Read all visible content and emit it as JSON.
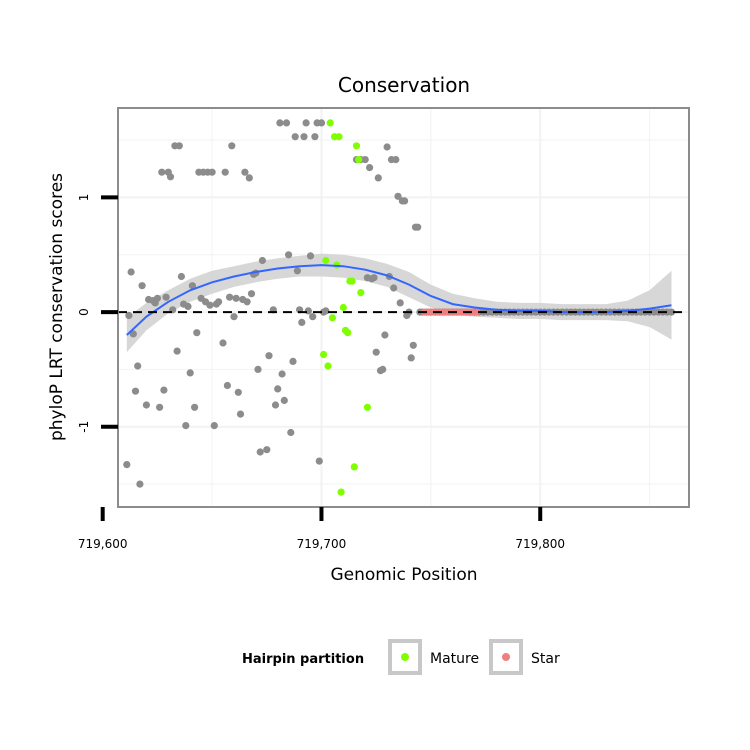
{
  "chart_data": {
    "type": "scatter",
    "title": "Conservation",
    "xlabel": "Genomic Position",
    "ylabel": "phyloP LRT conservation scores",
    "xlim": [
      719607,
      719868
    ],
    "ylim": [
      -1.7,
      1.78
    ],
    "x_ticks": [
      719600,
      719700,
      719800
    ],
    "x_tick_labels": [
      "719,600",
      "719,700",
      "719,800"
    ],
    "y_ticks": [
      -1,
      0,
      1
    ],
    "y_tick_labels": [
      "-1",
      "0",
      "1"
    ],
    "grid": true,
    "legend": {
      "title": "Hairpin partition",
      "position": "bottom",
      "entries": [
        {
          "label": "Mature",
          "color": "#7fff00"
        },
        {
          "label": "Star",
          "color": "#f08080"
        }
      ]
    },
    "colors": {
      "other": "#8c8c8c",
      "Mature": "#7fff00",
      "Star": "#f08080",
      "smooth": "#3366ff",
      "band": "#d3d3d3",
      "panel_border": "#8c8c8c",
      "gridline": "#f2f2f2"
    },
    "reference_line": {
      "y": 0,
      "style": "dashed"
    },
    "series": [
      {
        "name": "Other",
        "points": [
          [
            719611,
            -1.33
          ],
          [
            719612,
            -0.03
          ],
          [
            719613,
            0.35
          ],
          [
            719614,
            -0.19
          ],
          [
            719615,
            -0.69
          ],
          [
            719616,
            -0.47
          ],
          [
            719617,
            -1.5
          ],
          [
            719618,
            0.23
          ],
          [
            719620,
            -0.81
          ],
          [
            719621,
            0.11
          ],
          [
            719623,
            0.1
          ],
          [
            719624,
            0.08
          ],
          [
            719625,
            0.12
          ],
          [
            719626,
            -0.83
          ],
          [
            719627,
            1.22
          ],
          [
            719628,
            -0.68
          ],
          [
            719629,
            0.13
          ],
          [
            719630,
            1.22
          ],
          [
            719631,
            1.18
          ],
          [
            719632,
            0.02
          ],
          [
            719633,
            1.45
          ],
          [
            719634,
            -0.34
          ],
          [
            719635,
            1.45
          ],
          [
            719636,
            0.31
          ],
          [
            719637,
            0.07
          ],
          [
            719638,
            -0.99
          ],
          [
            719639,
            0.05
          ],
          [
            719640,
            -0.53
          ],
          [
            719641,
            0.23
          ],
          [
            719642,
            -0.83
          ],
          [
            719643,
            -0.18
          ],
          [
            719644,
            1.22
          ],
          [
            719645,
            0.12
          ],
          [
            719646,
            1.22
          ],
          [
            719647,
            0.09
          ],
          [
            719648,
            1.22
          ],
          [
            719649,
            0.06
          ],
          [
            719650,
            1.22
          ],
          [
            719651,
            -0.99
          ],
          [
            719652,
            0.07
          ],
          [
            719653,
            0.09
          ],
          [
            719655,
            -0.27
          ],
          [
            719656,
            1.22
          ],
          [
            719657,
            -0.64
          ],
          [
            719658,
            0.13
          ],
          [
            719659,
            1.45
          ],
          [
            719660,
            -0.04
          ],
          [
            719661,
            0.12
          ],
          [
            719662,
            -0.7
          ],
          [
            719663,
            -0.89
          ],
          [
            719664,
            0.11
          ],
          [
            719665,
            1.22
          ],
          [
            719666,
            0.09
          ],
          [
            719667,
            1.17
          ],
          [
            719668,
            0.16
          ],
          [
            719669,
            0.33
          ],
          [
            719670,
            0.34
          ],
          [
            719671,
            -0.5
          ],
          [
            719672,
            -1.22
          ],
          [
            719673,
            0.45
          ],
          [
            719675,
            -1.2
          ],
          [
            719676,
            -0.38
          ],
          [
            719678,
            0.02
          ],
          [
            719679,
            -0.81
          ],
          [
            719680,
            -0.67
          ],
          [
            719681,
            1.65
          ],
          [
            719682,
            -0.54
          ],
          [
            719683,
            -0.77
          ],
          [
            719684,
            1.65
          ],
          [
            719685,
            0.5
          ],
          [
            719686,
            -1.05
          ],
          [
            719687,
            -0.43
          ],
          [
            719688,
            1.53
          ],
          [
            719689,
            0.36
          ],
          [
            719690,
            0.02
          ],
          [
            719691,
            -0.09
          ],
          [
            719692,
            1.53
          ],
          [
            719693,
            1.65
          ],
          [
            719694,
            0.01
          ],
          [
            719695,
            0.49
          ],
          [
            719696,
            -0.04
          ],
          [
            719697,
            1.53
          ],
          [
            719698,
            1.65
          ],
          [
            719699,
            -1.3
          ],
          [
            719700,
            1.65
          ],
          [
            719701,
            0.0
          ],
          [
            719702,
            0.01
          ],
          [
            719716,
            1.33
          ],
          [
            719718,
            1.33
          ],
          [
            719720,
            1.33
          ],
          [
            719721,
            0.3
          ],
          [
            719722,
            1.26
          ],
          [
            719723,
            0.29
          ],
          [
            719724,
            0.3
          ],
          [
            719725,
            -0.35
          ],
          [
            719726,
            1.17
          ],
          [
            719727,
            -0.51
          ],
          [
            719728,
            -0.5
          ],
          [
            719729,
            -0.2
          ],
          [
            719730,
            1.44
          ],
          [
            719731,
            0.31
          ],
          [
            719732,
            1.33
          ],
          [
            719733,
            0.21
          ],
          [
            719734,
            1.33
          ],
          [
            719735,
            1.01
          ],
          [
            719736,
            0.08
          ],
          [
            719737,
            0.97
          ],
          [
            719738,
            0.97
          ],
          [
            719739,
            -0.03
          ],
          [
            719740,
            0.0
          ],
          [
            719741,
            -0.4
          ],
          [
            719742,
            -0.29
          ],
          [
            719743,
            0.74
          ],
          [
            719744,
            0.74
          ],
          [
            719745,
            0.0
          ],
          [
            719746,
            0.0
          ],
          [
            719748,
            0.0
          ],
          [
            719750,
            0.0
          ],
          [
            719752,
            0.0
          ],
          [
            719754,
            0.0
          ],
          [
            719756,
            0.0
          ],
          [
            719758,
            0.0
          ],
          [
            719760,
            0.0
          ],
          [
            719762,
            0.0
          ],
          [
            719764,
            0.0
          ],
          [
            719766,
            0.0
          ],
          [
            719768,
            0.0
          ],
          [
            719770,
            0.0
          ],
          [
            719772,
            0.0
          ],
          [
            719774,
            0.0
          ],
          [
            719776,
            0.0
          ],
          [
            719778,
            0.0
          ],
          [
            719780,
            0.0
          ],
          [
            719782,
            0.0
          ],
          [
            719784,
            0.0
          ],
          [
            719786,
            0.0
          ],
          [
            719788,
            0.0
          ],
          [
            719790,
            0.0
          ],
          [
            719792,
            0.0
          ],
          [
            719794,
            0.0
          ],
          [
            719796,
            0.0
          ],
          [
            719798,
            0.0
          ],
          [
            719800,
            0.0
          ],
          [
            719802,
            0.0
          ],
          [
            719804,
            0.0
          ],
          [
            719806,
            0.0
          ],
          [
            719808,
            0.0
          ],
          [
            719810,
            0.0
          ],
          [
            719812,
            0.0
          ],
          [
            719814,
            0.0
          ],
          [
            719816,
            0.0
          ],
          [
            719818,
            0.0
          ],
          [
            719820,
            0.0
          ],
          [
            719822,
            0.0
          ],
          [
            719824,
            0.0
          ],
          [
            719826,
            0.0
          ],
          [
            719828,
            0.0
          ],
          [
            719830,
            0.0
          ],
          [
            719832,
            0.0
          ],
          [
            719834,
            0.0
          ],
          [
            719836,
            0.0
          ],
          [
            719838,
            0.0
          ],
          [
            719840,
            0.0
          ],
          [
            719842,
            0.0
          ],
          [
            719844,
            0.0
          ],
          [
            719846,
            0.0
          ],
          [
            719848,
            0.0
          ],
          [
            719850,
            0.0
          ],
          [
            719852,
            0.0
          ],
          [
            719854,
            0.0
          ],
          [
            719856,
            0.0
          ],
          [
            719858,
            0.0
          ],
          [
            719860,
            0.0
          ]
        ]
      },
      {
        "name": "Mature",
        "points": [
          [
            719701,
            -0.37
          ],
          [
            719702,
            0.45
          ],
          [
            719703,
            -0.47
          ],
          [
            719704,
            1.65
          ],
          [
            719705,
            -0.05
          ],
          [
            719706,
            1.53
          ],
          [
            719707,
            0.41
          ],
          [
            719708,
            1.53
          ],
          [
            719709,
            -1.57
          ],
          [
            719710,
            0.04
          ],
          [
            719711,
            -0.16
          ],
          [
            719712,
            -0.18
          ],
          [
            719713,
            0.27
          ],
          [
            719714,
            0.27
          ],
          [
            719715,
            -1.35
          ],
          [
            719716,
            1.45
          ],
          [
            719717,
            1.33
          ],
          [
            719718,
            0.17
          ],
          [
            719721,
            -0.83
          ]
        ]
      },
      {
        "name": "Star",
        "points": [
          [
            719747,
            0.0
          ],
          [
            719749,
            0.0
          ],
          [
            719751,
            0.0
          ],
          [
            719753,
            0.0
          ],
          [
            719755,
            0.0
          ],
          [
            719757,
            0.0
          ],
          [
            719759,
            0.0
          ],
          [
            719761,
            0.0
          ],
          [
            719763,
            0.0
          ],
          [
            719765,
            0.0
          ],
          [
            719767,
            0.0
          ],
          [
            719769,
            0.0
          ],
          [
            719771,
            0.0
          ]
        ]
      }
    ],
    "smooth": {
      "x": [
        719611,
        719620,
        719630,
        719640,
        719650,
        719660,
        719670,
        719680,
        719690,
        719700,
        719710,
        719720,
        719730,
        719740,
        719750,
        719760,
        719770,
        719780,
        719790,
        719800,
        719810,
        719820,
        719830,
        719840,
        719850,
        719860
      ],
      "y": [
        -0.2,
        -0.04,
        0.09,
        0.19,
        0.26,
        0.31,
        0.35,
        0.38,
        0.4,
        0.41,
        0.4,
        0.37,
        0.32,
        0.24,
        0.14,
        0.07,
        0.04,
        0.02,
        0.01,
        0.01,
        0.0,
        0.0,
        0.0,
        0.01,
        0.03,
        0.06
      ],
      "lower": [
        -0.35,
        -0.16,
        -0.01,
        0.09,
        0.16,
        0.22,
        0.26,
        0.29,
        0.31,
        0.31,
        0.3,
        0.27,
        0.22,
        0.13,
        0.04,
        -0.02,
        -0.04,
        -0.05,
        -0.06,
        -0.06,
        -0.07,
        -0.07,
        -0.07,
        -0.08,
        -0.13,
        -0.24
      ],
      "upper": [
        -0.05,
        0.08,
        0.19,
        0.29,
        0.36,
        0.4,
        0.44,
        0.47,
        0.49,
        0.51,
        0.5,
        0.47,
        0.42,
        0.35,
        0.24,
        0.16,
        0.12,
        0.09,
        0.08,
        0.08,
        0.07,
        0.07,
        0.07,
        0.1,
        0.19,
        0.36
      ]
    }
  }
}
